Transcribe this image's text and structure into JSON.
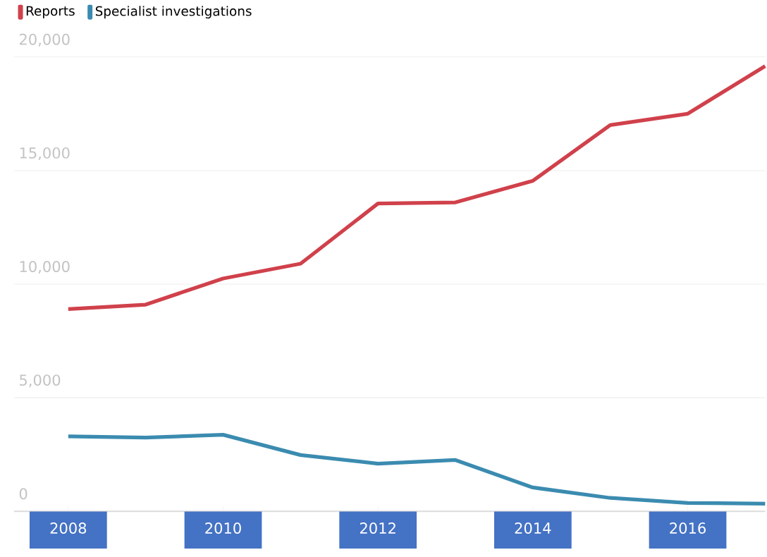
{
  "chart_data": {
    "type": "line",
    "x": [
      2008,
      2009,
      2010,
      2011,
      2012,
      2013,
      2014,
      2015,
      2016,
      2017
    ],
    "series": [
      {
        "name": "Reports",
        "color": "#d0414b",
        "values": [
          8900,
          9100,
          10250,
          10900,
          13550,
          13600,
          14550,
          17000,
          17500,
          19600
        ]
      },
      {
        "name": "Specialist investigations",
        "color": "#3b8bb0",
        "values": [
          3300,
          3250,
          3370,
          2480,
          2100,
          2260,
          1050,
          590,
          370,
          340
        ]
      }
    ],
    "xlim": [
      2007.3,
      2017
    ],
    "ylim": [
      0,
      20000
    ],
    "xticks": [
      2008,
      2010,
      2012,
      2014,
      2016
    ],
    "yticks": [
      0,
      {
        "value": 5000,
        "label": "5,000"
      },
      {
        "value": 10000,
        "label": "10,000"
      },
      {
        "value": 15000,
        "label": "15,000"
      },
      {
        "value": 20000,
        "label": "20,000"
      }
    ],
    "grid": "y",
    "legend": "top left"
  }
}
